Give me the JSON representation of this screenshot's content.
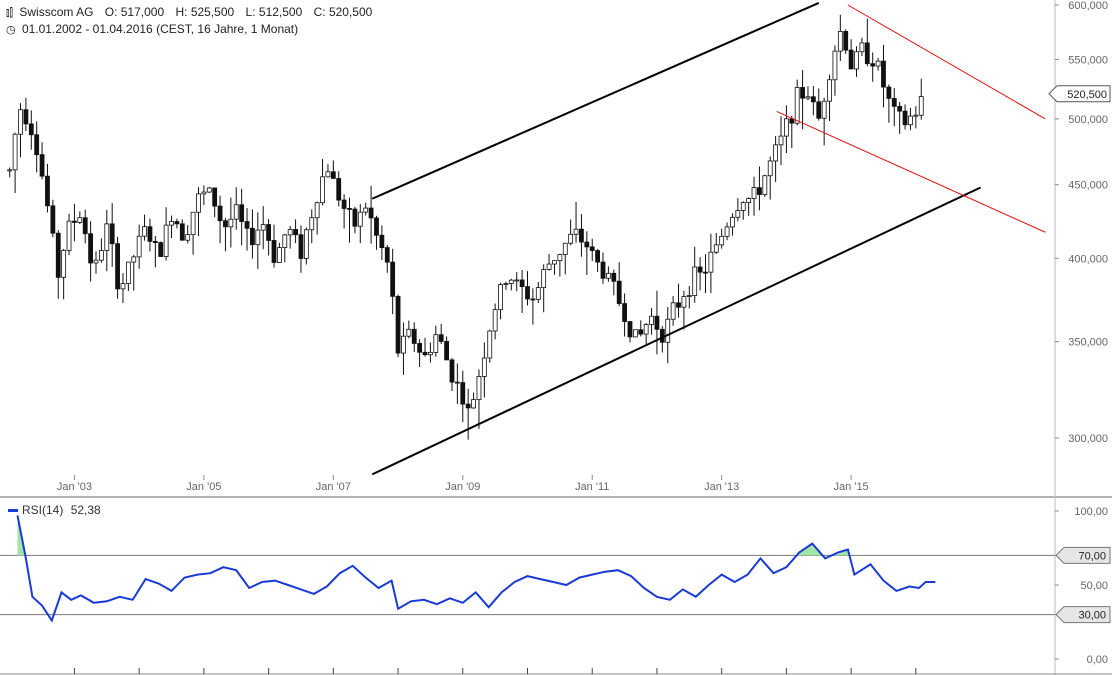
{
  "header": {
    "instrument": "Swisscom AG",
    "open": "O: 517,000",
    "high": "H: 525,500",
    "low": "L: 512,500",
    "close": "C: 520,500",
    "period": "01.01.2002 - 01.04.2016 (CEST, 16 Jahre, 1 Monat)"
  },
  "chart_data": [
    {
      "type": "candlestick",
      "title": "Swisscom AG",
      "scale": "log",
      "ylim": [
        285000,
        600000
      ],
      "y_ticks": [
        {
          "value": 300000,
          "label": "300,000"
        },
        {
          "value": 350000,
          "label": "350,000"
        },
        {
          "value": 400000,
          "label": "400,000"
        },
        {
          "value": 450000,
          "label": "450,000"
        },
        {
          "value": 500000,
          "label": "500,000"
        },
        {
          "value": 550000,
          "label": "550,000"
        },
        {
          "value": 600000,
          "label": "600,000"
        }
      ],
      "x_range": [
        2001.85,
        2018.15
      ],
      "x_ticks": [
        {
          "value": 2003,
          "label": "Jan '03"
        },
        {
          "value": 2005,
          "label": "Jan '05"
        },
        {
          "value": 2007,
          "label": "Jan '07"
        },
        {
          "value": 2009,
          "label": "Jan '09"
        },
        {
          "value": 2011,
          "label": "Jan '11"
        },
        {
          "value": 2013,
          "label": "Jan '13"
        },
        {
          "value": 2015,
          "label": "Jan '15"
        }
      ],
      "last_price_label": "520,500",
      "last_price": 520500,
      "price_anchors": [
        [
          2002.0,
          460000
        ],
        [
          2002.15,
          510000
        ],
        [
          2002.3,
          500000
        ],
        [
          2002.45,
          470000
        ],
        [
          2002.6,
          430000
        ],
        [
          2002.75,
          390000
        ],
        [
          2002.9,
          420000
        ],
        [
          2003.1,
          430000
        ],
        [
          2003.3,
          390000
        ],
        [
          2003.5,
          420000
        ],
        [
          2003.7,
          380000
        ],
        [
          2003.9,
          400000
        ],
        [
          2004.1,
          420000
        ],
        [
          2004.3,
          400000
        ],
        [
          2004.5,
          430000
        ],
        [
          2004.7,
          415000
        ],
        [
          2004.9,
          440000
        ],
        [
          2005.1,
          445000
        ],
        [
          2005.3,
          420000
        ],
        [
          2005.5,
          430000
        ],
        [
          2005.7,
          410000
        ],
        [
          2005.9,
          425000
        ],
        [
          2006.1,
          400000
        ],
        [
          2006.3,
          420000
        ],
        [
          2006.5,
          405000
        ],
        [
          2006.7,
          435000
        ],
        [
          2006.9,
          465000
        ],
        [
          2007.1,
          440000
        ],
        [
          2007.3,
          420000
        ],
        [
          2007.5,
          435000
        ],
        [
          2007.7,
          410000
        ],
        [
          2007.85,
          395000
        ],
        [
          2008.0,
          345000
        ],
        [
          2008.2,
          355000
        ],
        [
          2008.4,
          340000
        ],
        [
          2008.6,
          355000
        ],
        [
          2008.8,
          335000
        ],
        [
          2009.0,
          320000
        ],
        [
          2009.1,
          310000
        ],
        [
          2009.3,
          340000
        ],
        [
          2009.5,
          370000
        ],
        [
          2009.7,
          390000
        ],
        [
          2009.9,
          380000
        ],
        [
          2010.1,
          375000
        ],
        [
          2010.3,
          395000
        ],
        [
          2010.5,
          405000
        ],
        [
          2010.7,
          415000
        ],
        [
          2010.9,
          410000
        ],
        [
          2011.1,
          395000
        ],
        [
          2011.3,
          385000
        ],
        [
          2011.5,
          365000
        ],
        [
          2011.7,
          350000
        ],
        [
          2011.9,
          365000
        ],
        [
          2012.1,
          355000
        ],
        [
          2012.3,
          370000
        ],
        [
          2012.5,
          385000
        ],
        [
          2012.7,
          390000
        ],
        [
          2012.9,
          405000
        ],
        [
          2013.1,
          425000
        ],
        [
          2013.3,
          440000
        ],
        [
          2013.5,
          440000
        ],
        [
          2013.7,
          460000
        ],
        [
          2013.9,
          480000
        ],
        [
          2014.1,
          510000
        ],
        [
          2014.3,
          525000
        ],
        [
          2014.5,
          500000
        ],
        [
          2014.7,
          550000
        ],
        [
          2014.85,
          578000
        ],
        [
          2015.0,
          545000
        ],
        [
          2015.2,
          560000
        ],
        [
          2015.4,
          545000
        ],
        [
          2015.6,
          510000
        ],
        [
          2015.8,
          495000
        ],
        [
          2016.0,
          505000
        ],
        [
          2016.15,
          520500
        ]
      ],
      "channel_black_upper": [
        [
          2007.6,
          440000
        ],
        [
          2014.5,
          602000
        ]
      ],
      "channel_black_lower": [
        [
          2007.6,
          283000
        ],
        [
          2017.0,
          448000
        ]
      ],
      "channel_red_upper": [
        [
          2014.95,
          600000
        ],
        [
          2018.0,
          500000
        ]
      ],
      "channel_red_lower": [
        [
          2013.85,
          506000
        ],
        [
          2018.0,
          417000
        ]
      ]
    },
    {
      "type": "line",
      "title": "RSI(14)",
      "legend_name": "RSI(14)",
      "legend_value": "52,38",
      "ylim": [
        0,
        100
      ],
      "y_ticks": [
        {
          "value": 0,
          "label": "0,00"
        },
        {
          "value": 50,
          "label": "50,00"
        },
        {
          "value": 100,
          "label": "100,00"
        }
      ],
      "thresholds": [
        {
          "value": 70,
          "label": "70,00"
        },
        {
          "value": 30,
          "label": "30,00"
        }
      ],
      "series": [
        {
          "color": "#1a3ad4",
          "points": [
            [
              2002.12,
              97
            ],
            [
              2002.25,
              68
            ],
            [
              2002.35,
              42
            ],
            [
              2002.5,
              36
            ],
            [
              2002.65,
              26
            ],
            [
              2002.8,
              45
            ],
            [
              2002.95,
              40
            ],
            [
              2003.1,
              43
            ],
            [
              2003.3,
              38
            ],
            [
              2003.5,
              39
            ],
            [
              2003.7,
              42
            ],
            [
              2003.9,
              40
            ],
            [
              2004.1,
              54
            ],
            [
              2004.3,
              51
            ],
            [
              2004.5,
              46
            ],
            [
              2004.7,
              55
            ],
            [
              2004.9,
              57
            ],
            [
              2005.1,
              58
            ],
            [
              2005.3,
              62
            ],
            [
              2005.5,
              60
            ],
            [
              2005.7,
              48
            ],
            [
              2005.9,
              52
            ],
            [
              2006.1,
              53
            ],
            [
              2006.3,
              50
            ],
            [
              2006.5,
              47
            ],
            [
              2006.7,
              44
            ],
            [
              2006.9,
              49
            ],
            [
              2007.1,
              58
            ],
            [
              2007.3,
              63
            ],
            [
              2007.5,
              55
            ],
            [
              2007.7,
              48
            ],
            [
              2007.9,
              53
            ],
            [
              2008.0,
              34
            ],
            [
              2008.2,
              39
            ],
            [
              2008.4,
              40
            ],
            [
              2008.6,
              37
            ],
            [
              2008.8,
              41
            ],
            [
              2009.0,
              38
            ],
            [
              2009.2,
              45
            ],
            [
              2009.4,
              35
            ],
            [
              2009.6,
              45
            ],
            [
              2009.8,
              52
            ],
            [
              2010.0,
              56
            ],
            [
              2010.2,
              54
            ],
            [
              2010.4,
              52
            ],
            [
              2010.6,
              50
            ],
            [
              2010.8,
              55
            ],
            [
              2011.0,
              57
            ],
            [
              2011.2,
              59
            ],
            [
              2011.4,
              60
            ],
            [
              2011.6,
              56
            ],
            [
              2011.8,
              48
            ],
            [
              2012.0,
              42
            ],
            [
              2012.2,
              40
            ],
            [
              2012.4,
              47
            ],
            [
              2012.6,
              42
            ],
            [
              2012.8,
              50
            ],
            [
              2013.0,
              57
            ],
            [
              2013.2,
              52
            ],
            [
              2013.4,
              57
            ],
            [
              2013.6,
              68
            ],
            [
              2013.8,
              58
            ],
            [
              2014.0,
              62
            ],
            [
              2014.2,
              72
            ],
            [
              2014.4,
              78
            ],
            [
              2014.6,
              68
            ],
            [
              2014.8,
              72
            ],
            [
              2014.95,
              74
            ],
            [
              2015.05,
              57
            ],
            [
              2015.3,
              64
            ],
            [
              2015.5,
              53
            ],
            [
              2015.7,
              46
            ],
            [
              2015.9,
              49
            ],
            [
              2016.05,
              48
            ],
            [
              2016.15,
              52
            ],
            [
              2016.3,
              52
            ]
          ]
        }
      ]
    }
  ]
}
